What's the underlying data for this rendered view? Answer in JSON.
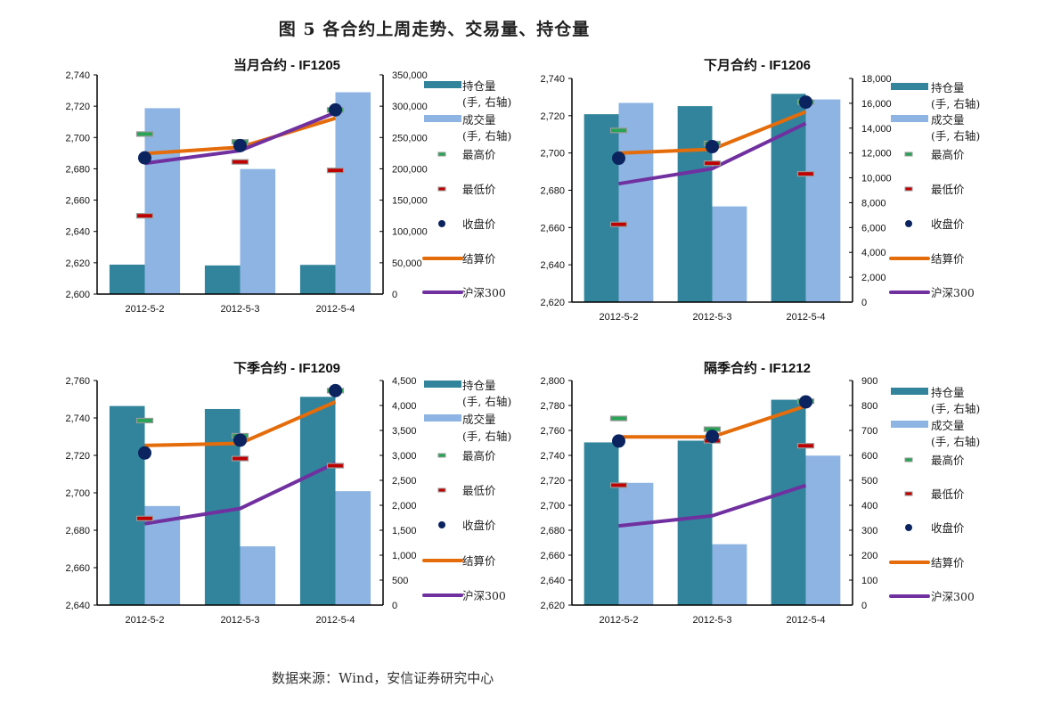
{
  "figure_title": "图 5 各合约上周走势、交易量、持仓量",
  "source": "数据来源：Wind，安信证券研究中心",
  "colors": {
    "open_interest": "#31849b",
    "volume": "#8eb4e3",
    "high": "#27a455",
    "low": "#c00000",
    "close": "#0b2460",
    "settle": "#e46c0a",
    "hs300": "#7030a0",
    "marker_border": "#999999"
  },
  "legend": {
    "open_interest": [
      "持仓量",
      "(手, 右轴)"
    ],
    "volume": [
      "成交量",
      "(手, 右轴)"
    ],
    "high": "最高价",
    "low": "最低价",
    "close": "收盘价",
    "settle": "结算价",
    "hs300": "沪深300"
  },
  "chart_data": [
    {
      "type": "bar+line",
      "title": "当月合约 - IF1205",
      "categories": [
        "2012-5-2",
        "2012-5-3",
        "2012-5-4"
      ],
      "ylim_left": [
        2600,
        2740
      ],
      "yticks_left": [
        2600,
        2620,
        2640,
        2660,
        2680,
        2700,
        2720,
        2740
      ],
      "ylim_right": [
        0,
        350000
      ],
      "yticks_right": [
        0,
        50000,
        100000,
        150000,
        200000,
        250000,
        300000,
        350000
      ],
      "series": {
        "open_interest": [
          47000,
          45700,
          46600
        ],
        "volume": [
          296800,
          199700,
          322200
        ],
        "high": [
          2702.2,
          2697.2,
          2717.6
        ],
        "low": [
          2650.0,
          2684.4,
          2679.0
        ],
        "close": [
          2687.0,
          2694.8,
          2717.6
        ],
        "settle": [
          2689.7,
          2693.8,
          2712.3
        ],
        "hs300": [
          2683.5,
          2691.6,
          2715.9
        ]
      }
    },
    {
      "type": "bar+line",
      "title": "下月合约 - IF1206",
      "categories": [
        "2012-5-2",
        "2012-5-3",
        "2012-5-4"
      ],
      "ylim_left": [
        2620,
        2740
      ],
      "yticks_left": [
        2620,
        2640,
        2660,
        2680,
        2700,
        2720,
        2740
      ],
      "ylim_right": [
        0,
        18000
      ],
      "yticks_right": [
        0,
        2000,
        4000,
        6000,
        8000,
        10000,
        12000,
        14000,
        16000,
        18000
      ],
      "series": {
        "open_interest": [
          15120,
          15770,
          16760
        ],
        "volume": [
          16030,
          7700,
          16310
        ],
        "high": [
          2712.1,
          2705.1,
          2727.3
        ],
        "low": [
          2661.7,
          2694.5,
          2688.8
        ],
        "close": [
          2697.2,
          2703.4,
          2727.3
        ],
        "settle": [
          2699.9,
          2702.0,
          2722.1
        ],
        "hs300": [
          2683.5,
          2691.6,
          2715.9
        ]
      }
    },
    {
      "type": "bar+line",
      "title": "下季合约 - IF1209",
      "categories": [
        "2012-5-2",
        "2012-5-3",
        "2012-5-4"
      ],
      "ylim_left": [
        2640,
        2760
      ],
      "yticks_left": [
        2640,
        2660,
        2680,
        2700,
        2720,
        2740,
        2760
      ],
      "ylim_right": [
        0,
        4500
      ],
      "yticks_right": [
        0,
        500,
        1000,
        1500,
        2000,
        2500,
        3000,
        3500,
        4000,
        4500
      ],
      "series": {
        "open_interest": [
          3989,
          3929,
          4173
        ],
        "volume": [
          1985,
          1177,
          2283
        ],
        "high": [
          2738.6,
          2730.5,
          2754.6
        ],
        "low": [
          2686.3,
          2718.3,
          2714.5
        ],
        "close": [
          2721.3,
          2728.1,
          2754.6
        ],
        "settle": [
          2725.3,
          2726.4,
          2748.6
        ],
        "hs300": [
          2683.5,
          2691.6,
          2715.9
        ]
      }
    },
    {
      "type": "bar+line",
      "title": "隔季合约 - IF1212",
      "categories": [
        "2012-5-2",
        "2012-5-3",
        "2012-5-4"
      ],
      "ylim_left": [
        2620,
        2800
      ],
      "yticks_left": [
        2620,
        2640,
        2660,
        2680,
        2700,
        2720,
        2740,
        2760,
        2780,
        2800
      ],
      "ylim_right": [
        0,
        900
      ],
      "yticks_right": [
        0,
        100,
        200,
        300,
        400,
        500,
        600,
        700,
        800,
        900
      ],
      "series": {
        "open_interest": [
          652,
          659,
          823
        ],
        "volume": [
          490,
          244,
          599
        ],
        "high": [
          2769.6,
          2761.0,
          2783.4
        ],
        "low": [
          2716.1,
          2751.7,
          2747.7
        ],
        "close": [
          2751.5,
          2755.3,
          2782.9
        ],
        "settle": [
          2754.8,
          2754.8,
          2779.6
        ],
        "hs300": [
          2683.5,
          2691.6,
          2715.9
        ]
      }
    }
  ]
}
